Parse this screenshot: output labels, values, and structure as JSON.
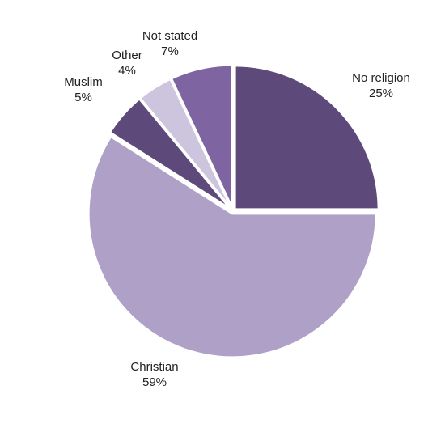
{
  "chart_data": {
    "type": "pie",
    "slices": [
      {
        "label": "No religion",
        "value": 25,
        "value_label": "25%",
        "color": "#5e4a7a"
      },
      {
        "label": "Christian",
        "value": 59,
        "value_label": "59%",
        "color": "#afa0c8"
      },
      {
        "label": "Muslim",
        "value": 5,
        "value_label": "5%",
        "color": "#5e4a7a"
      },
      {
        "label": "Other",
        "value": 4,
        "value_label": "4%",
        "color": "#cdc5de"
      },
      {
        "label": "Not stated",
        "value": 7,
        "value_label": "7%",
        "color": "#7f64a2"
      }
    ],
    "start_angle_deg": 0,
    "direction": "clockwise",
    "separator_color": "#ffffff"
  }
}
